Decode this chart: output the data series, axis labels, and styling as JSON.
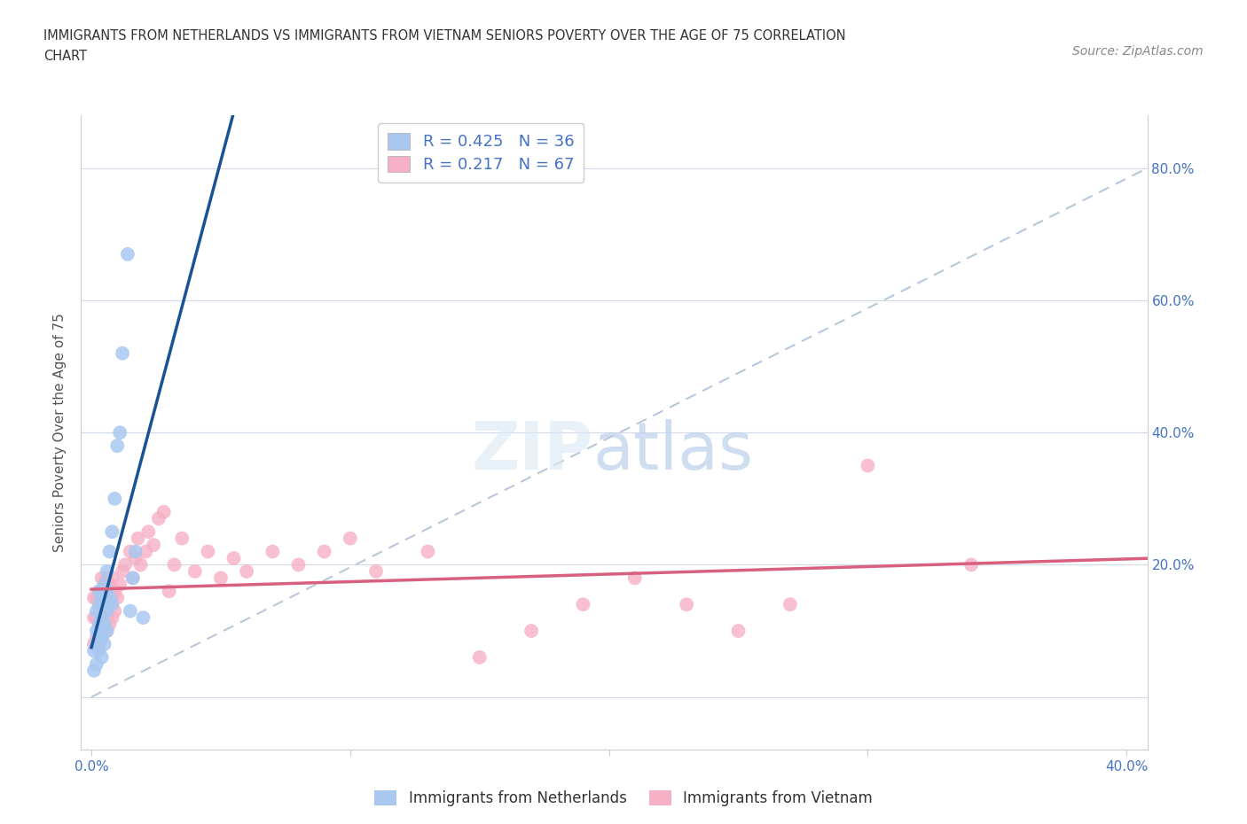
{
  "title_line1": "IMMIGRANTS FROM NETHERLANDS VS IMMIGRANTS FROM VIETNAM SENIORS POVERTY OVER THE AGE OF 75 CORRELATION",
  "title_line2": "CHART",
  "source": "Source: ZipAtlas.com",
  "ylabel": "Seniors Poverty Over the Age of 75",
  "netherlands_R": 0.425,
  "netherlands_N": 36,
  "vietnam_R": 0.217,
  "vietnam_N": 67,
  "netherlands_color": "#a8c8f0",
  "netherlands_line_color": "#1a5296",
  "vietnam_color": "#f5b0c5",
  "vietnam_line_color": "#d95f7f",
  "diagonal_color": "#b8c8d8",
  "nl_x": [
    0.001,
    0.001,
    0.002,
    0.002,
    0.002,
    0.002,
    0.003,
    0.003,
    0.003,
    0.003,
    0.003,
    0.004,
    0.004,
    0.004,
    0.004,
    0.005,
    0.005,
    0.005,
    0.005,
    0.006,
    0.006,
    0.006,
    0.006,
    0.007,
    0.007,
    0.008,
    0.008,
    0.009,
    0.01,
    0.011,
    0.012,
    0.014,
    0.015,
    0.016,
    0.017,
    0.02
  ],
  "nl_y": [
    0.04,
    0.07,
    0.05,
    0.08,
    0.1,
    0.13,
    0.07,
    0.09,
    0.11,
    0.14,
    0.16,
    0.06,
    0.09,
    0.12,
    0.15,
    0.08,
    0.11,
    0.14,
    0.17,
    0.1,
    0.13,
    0.16,
    0.19,
    0.15,
    0.22,
    0.14,
    0.25,
    0.3,
    0.38,
    0.4,
    0.52,
    0.67,
    0.13,
    0.18,
    0.22,
    0.12
  ],
  "vn_x": [
    0.001,
    0.001,
    0.001,
    0.002,
    0.002,
    0.002,
    0.003,
    0.003,
    0.003,
    0.003,
    0.004,
    0.004,
    0.004,
    0.004,
    0.005,
    0.005,
    0.005,
    0.005,
    0.006,
    0.006,
    0.006,
    0.006,
    0.007,
    0.007,
    0.007,
    0.008,
    0.008,
    0.008,
    0.009,
    0.009,
    0.01,
    0.011,
    0.012,
    0.013,
    0.015,
    0.016,
    0.017,
    0.018,
    0.019,
    0.021,
    0.022,
    0.024,
    0.026,
    0.028,
    0.03,
    0.032,
    0.035,
    0.04,
    0.045,
    0.05,
    0.055,
    0.06,
    0.07,
    0.08,
    0.09,
    0.1,
    0.11,
    0.13,
    0.15,
    0.17,
    0.19,
    0.21,
    0.23,
    0.25,
    0.27,
    0.3,
    0.34
  ],
  "vn_y": [
    0.08,
    0.12,
    0.15,
    0.09,
    0.12,
    0.15,
    0.08,
    0.11,
    0.14,
    0.16,
    0.09,
    0.12,
    0.15,
    0.18,
    0.1,
    0.13,
    0.15,
    0.17,
    0.1,
    0.13,
    0.15,
    0.18,
    0.11,
    0.14,
    0.17,
    0.12,
    0.15,
    0.18,
    0.13,
    0.16,
    0.15,
    0.17,
    0.19,
    0.2,
    0.22,
    0.18,
    0.21,
    0.24,
    0.2,
    0.22,
    0.25,
    0.23,
    0.27,
    0.28,
    0.16,
    0.2,
    0.24,
    0.19,
    0.22,
    0.18,
    0.21,
    0.19,
    0.22,
    0.2,
    0.22,
    0.24,
    0.19,
    0.22,
    0.06,
    0.1,
    0.14,
    0.18,
    0.14,
    0.1,
    0.14,
    0.35,
    0.2
  ],
  "xlim": [
    -0.004,
    0.408
  ],
  "ylim": [
    -0.08,
    0.88
  ],
  "xticks": [
    0.0,
    0.1,
    0.2,
    0.3,
    0.4
  ],
  "xticklabels": [
    "0.0%",
    "",
    "",
    "",
    "40.0%"
  ],
  "yticks": [
    0.0,
    0.2,
    0.4,
    0.6,
    0.8
  ],
  "yticklabels_right": [
    "",
    "20.0%",
    "40.0%",
    "60.0%",
    "80.0%"
  ]
}
